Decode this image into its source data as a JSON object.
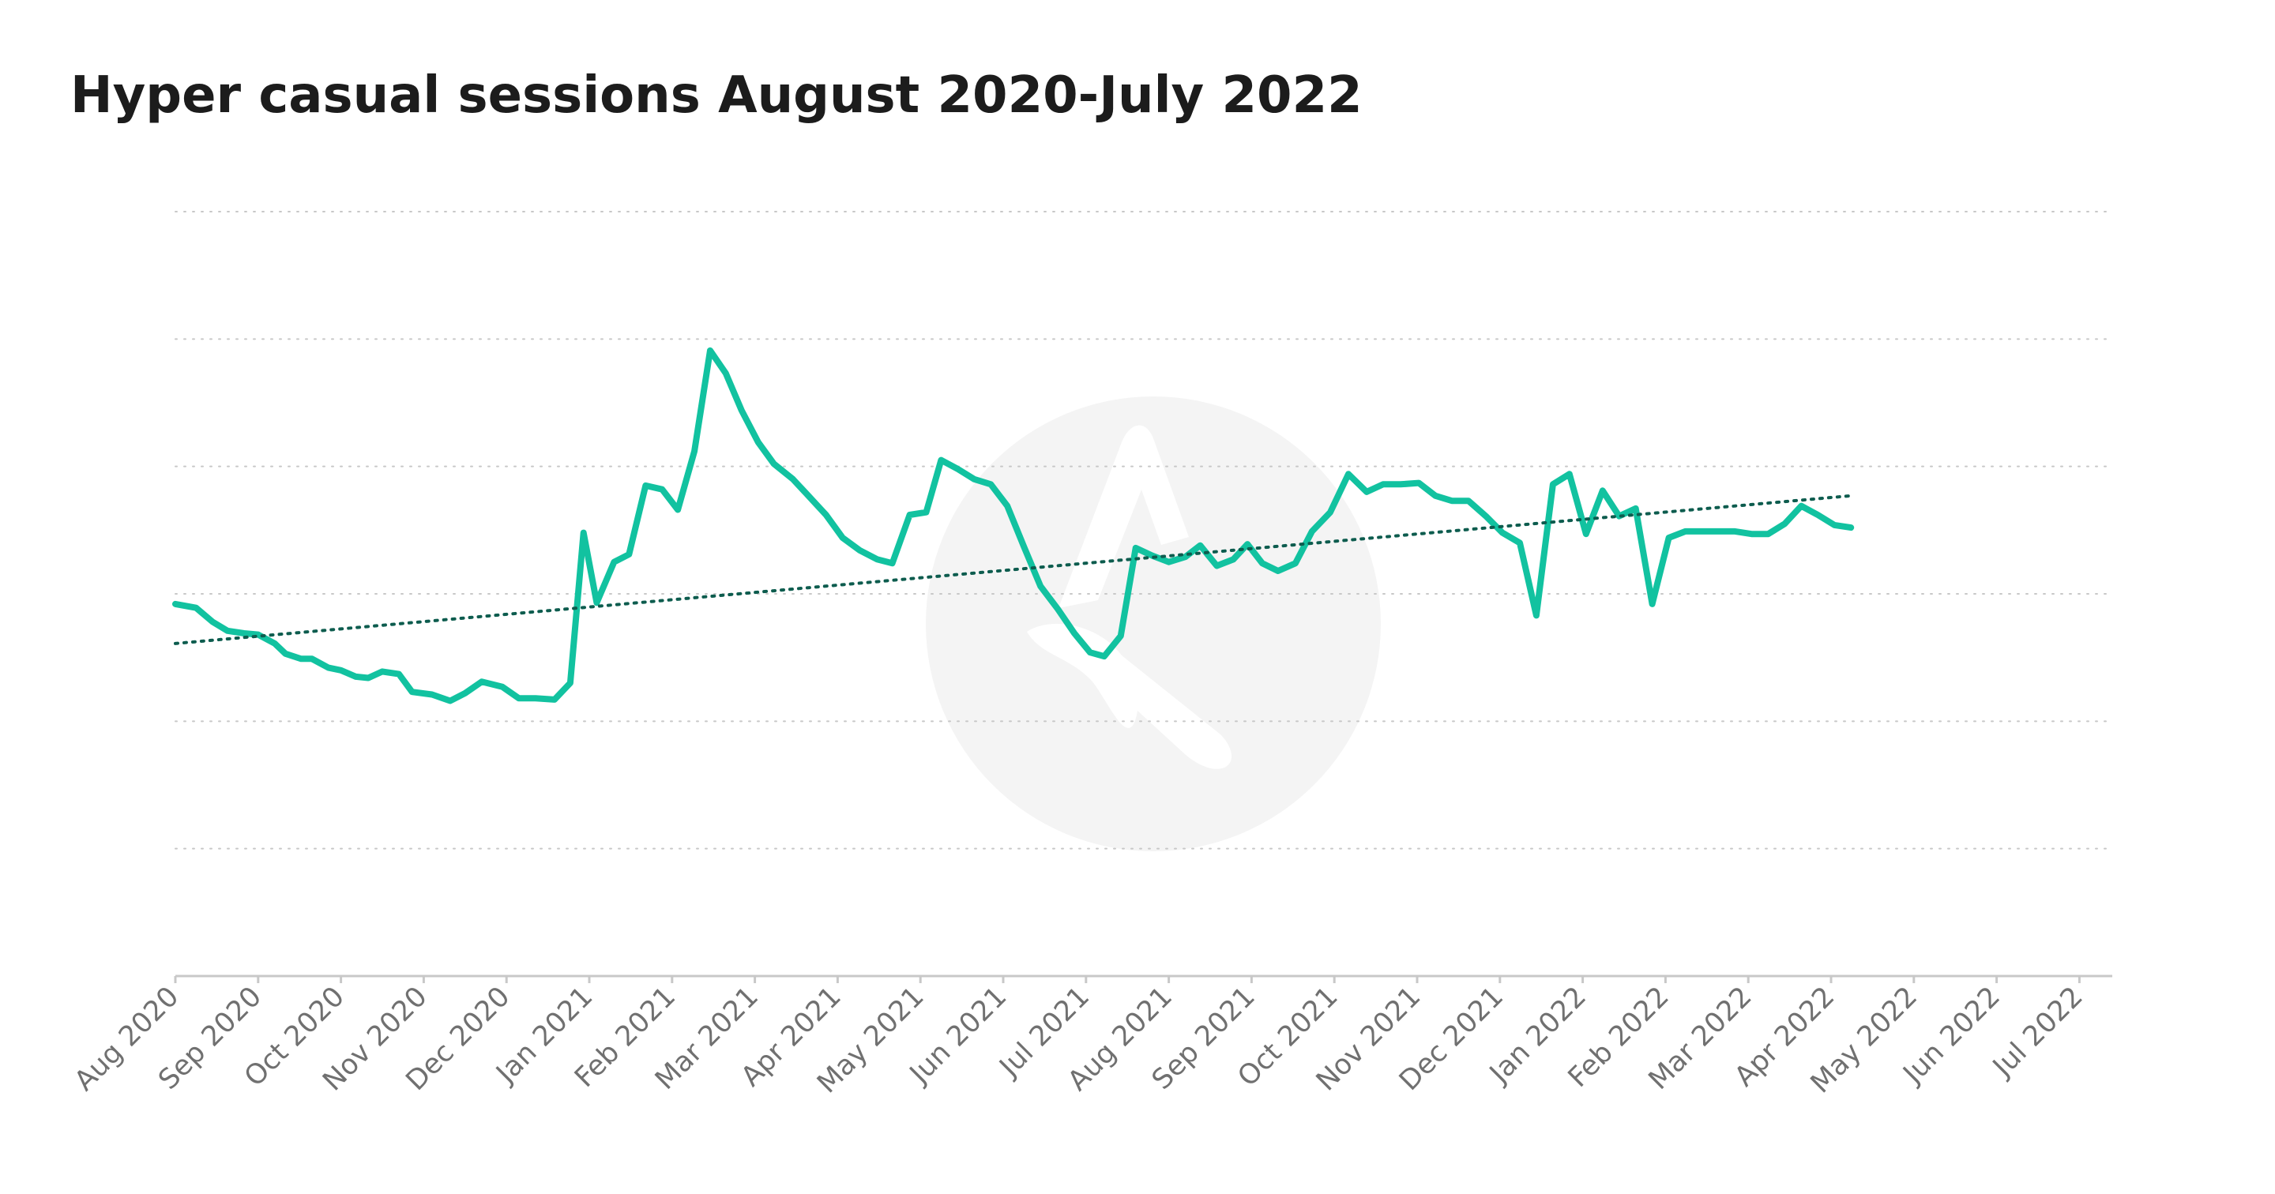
{
  "chart_data": {
    "type": "line",
    "title": "Hyper casual sessions August 2020-July 2022",
    "xlabel": "",
    "ylabel": "",
    "x_tick_labels": [
      "Aug 2020",
      "Sep 2020",
      "Oct 2020",
      "Nov 2020",
      "Dec 2020",
      "Jan 2021",
      "Feb 2021",
      "Mar 2021",
      "Apr 2021",
      "May 2021",
      "Jun 2021",
      "Jul 2021",
      "Aug 2021",
      "Sep 2021",
      "Oct 2021",
      "Nov 2021",
      "Dec 2021",
      "Jan 2022",
      "Feb 2022",
      "Mar 2022",
      "Apr 2022",
      "May 2022",
      "Jun 2022",
      "Jul 2022"
    ],
    "ylim": [
      0,
      6
    ],
    "y_gridlines": [
      1,
      2,
      3,
      4,
      5,
      6
    ],
    "y_tick_labels_shown": false,
    "grid": true,
    "legend": "none",
    "watermark": "logo",
    "colors": {
      "series": "#12c2a0",
      "trend": "#0d5c4e",
      "grid": "#c8c8c8",
      "tick_text": "#707070",
      "title_text": "#1c1c1c"
    },
    "series": [
      {
        "style": "solid",
        "points": [
          [
            0.0,
            2.92
          ],
          [
            0.25,
            2.89
          ],
          [
            0.45,
            2.78
          ],
          [
            0.63,
            2.71
          ],
          [
            0.83,
            2.69
          ],
          [
            1.0,
            2.68
          ],
          [
            1.2,
            2.61
          ],
          [
            1.33,
            2.53
          ],
          [
            1.52,
            2.49
          ],
          [
            1.65,
            2.49
          ],
          [
            1.85,
            2.42
          ],
          [
            2.0,
            2.4
          ],
          [
            2.18,
            2.35
          ],
          [
            2.33,
            2.34
          ],
          [
            2.5,
            2.39
          ],
          [
            2.7,
            2.37
          ],
          [
            2.86,
            2.23
          ],
          [
            3.1,
            2.21
          ],
          [
            3.32,
            2.16
          ],
          [
            3.5,
            2.22
          ],
          [
            3.7,
            2.31
          ],
          [
            3.95,
            2.27
          ],
          [
            4.15,
            2.18
          ],
          [
            4.35,
            2.18
          ],
          [
            4.58,
            2.17
          ],
          [
            4.77,
            2.3
          ],
          [
            4.93,
            3.48
          ],
          [
            5.09,
            2.93
          ],
          [
            5.3,
            3.25
          ],
          [
            5.48,
            3.31
          ],
          [
            5.68,
            3.85
          ],
          [
            5.88,
            3.82
          ],
          [
            6.07,
            3.66
          ],
          [
            6.27,
            4.12
          ],
          [
            6.46,
            4.91
          ],
          [
            6.65,
            4.73
          ],
          [
            6.84,
            4.44
          ],
          [
            7.04,
            4.19
          ],
          [
            7.23,
            4.02
          ],
          [
            7.46,
            3.9
          ],
          [
            7.66,
            3.76
          ],
          [
            7.86,
            3.62
          ],
          [
            8.06,
            3.44
          ],
          [
            8.27,
            3.34
          ],
          [
            8.48,
            3.27
          ],
          [
            8.66,
            3.24
          ],
          [
            8.87,
            3.62
          ],
          [
            9.07,
            3.64
          ],
          [
            9.25,
            4.05
          ],
          [
            9.45,
            3.98
          ],
          [
            9.65,
            3.9
          ],
          [
            9.85,
            3.86
          ],
          [
            10.05,
            3.69
          ],
          [
            10.25,
            3.37
          ],
          [
            10.45,
            3.06
          ],
          [
            10.66,
            2.88
          ],
          [
            10.86,
            2.69
          ],
          [
            11.05,
            2.54
          ],
          [
            11.22,
            2.51
          ],
          [
            11.42,
            2.67
          ],
          [
            11.6,
            3.36
          ],
          [
            11.8,
            3.3
          ],
          [
            12.0,
            3.25
          ],
          [
            12.2,
            3.29
          ],
          [
            12.38,
            3.38
          ],
          [
            12.58,
            3.22
          ],
          [
            12.78,
            3.27
          ],
          [
            12.95,
            3.39
          ],
          [
            13.13,
            3.24
          ],
          [
            13.32,
            3.18
          ],
          [
            13.53,
            3.24
          ],
          [
            13.73,
            3.49
          ],
          [
            13.95,
            3.64
          ],
          [
            14.17,
            3.94
          ],
          [
            14.39,
            3.8
          ],
          [
            14.59,
            3.86
          ],
          [
            14.8,
            3.86
          ],
          [
            15.02,
            3.87
          ],
          [
            15.22,
            3.77
          ],
          [
            15.42,
            3.73
          ],
          [
            15.62,
            3.73
          ],
          [
            15.83,
            3.61
          ],
          [
            16.03,
            3.48
          ],
          [
            16.24,
            3.4
          ],
          [
            16.44,
            2.83
          ],
          [
            16.64,
            3.86
          ],
          [
            16.84,
            3.94
          ],
          [
            17.04,
            3.47
          ],
          [
            17.24,
            3.81
          ],
          [
            17.44,
            3.61
          ],
          [
            17.64,
            3.67
          ],
          [
            17.84,
            2.92
          ],
          [
            18.04,
            3.44
          ],
          [
            18.24,
            3.49
          ],
          [
            18.44,
            3.49
          ],
          [
            18.64,
            3.49
          ],
          [
            18.84,
            3.49
          ],
          [
            19.04,
            3.47
          ],
          [
            19.24,
            3.47
          ],
          [
            19.44,
            3.55
          ],
          [
            19.64,
            3.69
          ],
          [
            19.84,
            3.62
          ],
          [
            20.04,
            3.54
          ],
          [
            20.24,
            3.52
          ]
        ]
      },
      {
        "style": "dotted",
        "points": [
          [
            0.0,
            2.61
          ],
          [
            20.24,
            3.77
          ]
        ]
      }
    ]
  }
}
